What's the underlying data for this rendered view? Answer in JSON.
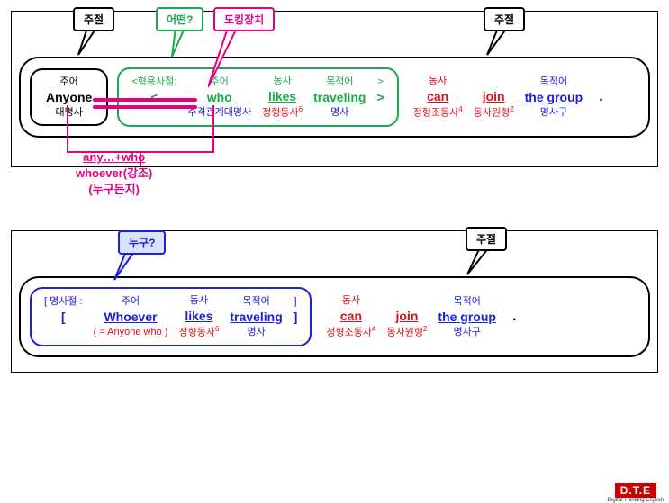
{
  "colors": {
    "black": "#000000",
    "green": "#1ba84a",
    "magenta": "#e4007f",
    "blue": "#1e20d6",
    "red": "#d8121c",
    "grey": "#555555"
  },
  "callouts": {
    "p1_main1": "주절",
    "p1_which": "어떤?",
    "p1_docking": "도킹장치",
    "p1_main2": "주절",
    "p2_who": "누구?",
    "p2_main": "주절"
  },
  "panel1": {
    "subject_box": {
      "role": "주어",
      "word": "Anyone",
      "pos": "대명사",
      "role_color": "#000000",
      "word_color": "#000000",
      "pos_color": "#000000"
    },
    "adj_clause": {
      "border_color": "#1ba84a",
      "header_open": "<형용사절:",
      "header_close": ">",
      "open_bracket": "<",
      "close_bracket": ">",
      "header_color": "#1ba84a",
      "cols": [
        {
          "role": "주어",
          "word": "who",
          "pos": "주격관계대명사",
          "role_color": "#1ba84a",
          "word_color": "#1ba84a",
          "pos_color": "#1e20d6"
        },
        {
          "role": "동사",
          "word": "likes",
          "pos": "정형동사",
          "pos_sup": "6",
          "role_color": "#1ba84a",
          "word_color": "#1ba84a",
          "pos_color": "#d8121c"
        },
        {
          "role": "목적어",
          "word": "traveling",
          "pos": "명사",
          "role_color": "#1ba84a",
          "word_color": "#1ba84a",
          "pos_color": "#1e20d6"
        }
      ]
    },
    "rest": [
      {
        "role": "동사",
        "word": "can",
        "pos": "정형조동사",
        "pos_sup": "4",
        "role_color": "#d8121c",
        "word_color": "#d8121c",
        "pos_color": "#d8121c",
        "role_span": true
      },
      {
        "role": "",
        "word": "join",
        "pos": "동사원형",
        "pos_sup": "2",
        "role_color": "#d8121c",
        "word_color": "#d8121c",
        "pos_color": "#d8121c"
      },
      {
        "role": "목적어",
        "word": "the group",
        "pos": "명사구",
        "role_color": "#1e20d6",
        "word_color": "#1e20d6",
        "pos_color": "#1e20d6"
      }
    ],
    "note": {
      "line1": "any…+who",
      "line2": "whoever(강조)",
      "line3": "(누구든지)",
      "color": "#e4007f"
    }
  },
  "panel2": {
    "noun_clause": {
      "border_color": "#1e20d6",
      "header_open": "[ 명사절 :",
      "header_close": "]",
      "open_bracket": "[",
      "close_bracket": "]",
      "header_color": "#1e20d6",
      "cols": [
        {
          "role": "주어",
          "word": "Whoever",
          "pos": "( = Anyone who )",
          "role_color": "#1e20d6",
          "word_color": "#1e20d6",
          "pos_color": "#d8121c"
        },
        {
          "role": "동사",
          "word": "likes",
          "pos": "정형동사",
          "pos_sup": "6",
          "role_color": "#1e20d6",
          "word_color": "#1e20d6",
          "pos_color": "#d8121c"
        },
        {
          "role": "목적어",
          "word": "traveling",
          "pos": "명사",
          "role_color": "#1e20d6",
          "word_color": "#1e20d6",
          "pos_color": "#1e20d6"
        }
      ]
    },
    "rest": [
      {
        "role": "동사",
        "word": "can",
        "pos": "정형조동사",
        "pos_sup": "4",
        "role_color": "#d8121c",
        "word_color": "#d8121c",
        "pos_color": "#d8121c",
        "role_span": true
      },
      {
        "role": "",
        "word": "join",
        "pos": "동사원형",
        "pos_sup": "2",
        "role_color": "#d8121c",
        "word_color": "#d8121c",
        "pos_color": "#d8121c"
      },
      {
        "role": "목적어",
        "word": "the group",
        "pos": "명사구",
        "role_color": "#1e20d6",
        "word_color": "#1e20d6",
        "pos_color": "#1e20d6"
      }
    ]
  },
  "logo": {
    "main": "D.T.E",
    "sub": "Digital Thinking English",
    "bg": "#cc0000"
  }
}
